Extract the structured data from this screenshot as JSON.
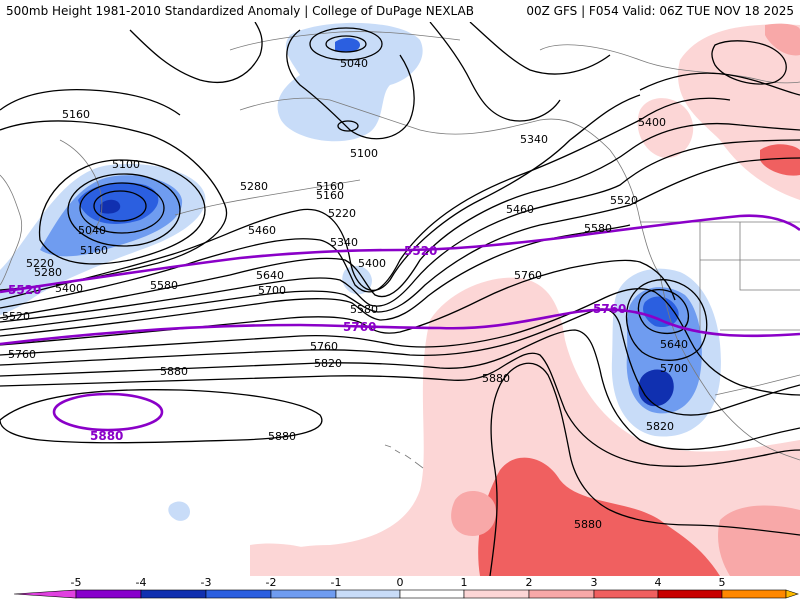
{
  "header": {
    "title": "500mb Height 1981-2010 Standardized Anomaly | College of DuPage NEXLAB",
    "run_info": "00Z GFS | F054 Valid: 06Z TUE NOV 18 2025"
  },
  "contour_labels": [
    "5040",
    "5040",
    "5100",
    "5100",
    "5160",
    "5160",
    "5160",
    "5220",
    "5220",
    "5280",
    "5280",
    "5340",
    "5340",
    "5400",
    "5400",
    "5400",
    "5460",
    "5460",
    "5520",
    "5520",
    "5580",
    "5580",
    "5580",
    "5640",
    "5640",
    "5700",
    "5700",
    "5760",
    "5760",
    "5760",
    "5820",
    "5820",
    "5880",
    "5880",
    "5880",
    "5880",
    "5160"
  ],
  "purple_labels": [
    "5520",
    "5520",
    "5760",
    "5760",
    "5880"
  ],
  "colorbar": {
    "labels": [
      "-5",
      "-4",
      "-3",
      "-2",
      "-1",
      "0",
      "1",
      "2",
      "3",
      "4",
      "5"
    ],
    "colors_negative": [
      "#e040e0",
      "#8800cc",
      "#1030b0",
      "#2b5fe0",
      "#6f9cf0",
      "#c8dcf8"
    ],
    "colors_positive": [
      "#ffffff",
      "#fcd6d6",
      "#f8a8a8",
      "#f06060",
      "#c80000",
      "#ff8800",
      "#ffbb00"
    ]
  },
  "colors": {
    "contour": "#000000",
    "highlight_contour": "#8a00c8",
    "coastline": "#7a7a7a"
  }
}
